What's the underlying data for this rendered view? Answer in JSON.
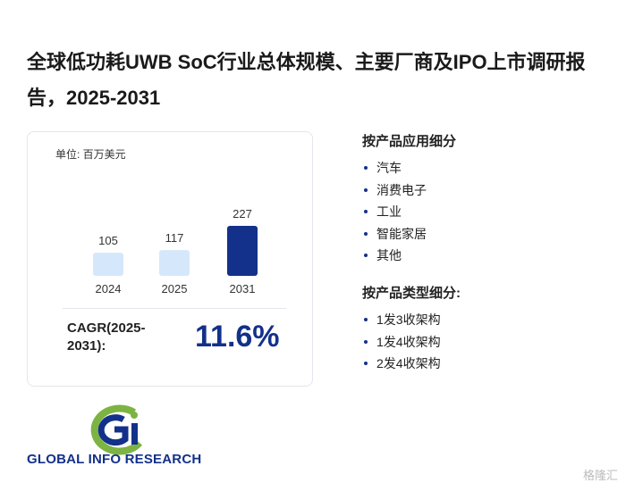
{
  "header": {
    "title": "全球低功耗UWB SoC行业总体规模、主要厂商及IPO上市调研报告，2025-2031"
  },
  "chart_data": {
    "type": "bar",
    "unit_label": "单位: 百万美元",
    "categories": [
      "2024",
      "2025",
      "2031"
    ],
    "values": [
      105,
      117,
      227
    ],
    "colors": [
      "#d5e7fb",
      "#d5e7fb",
      "#13318a"
    ]
  },
  "cagr": {
    "label": "CAGR(2025-2031):",
    "value": "11.6%"
  },
  "segments": [
    {
      "title": "按产品应用细分",
      "items": [
        "汽车",
        "消费电子",
        "工业",
        "智能家居",
        "其他"
      ]
    },
    {
      "title": "按产品类型细分:",
      "items": [
        "1发3收架构",
        "1发4收架构",
        "2发4收架构"
      ]
    }
  ],
  "logo": {
    "text": "GLOBAL INFO RESEARCH"
  },
  "watermark": "格隆汇"
}
